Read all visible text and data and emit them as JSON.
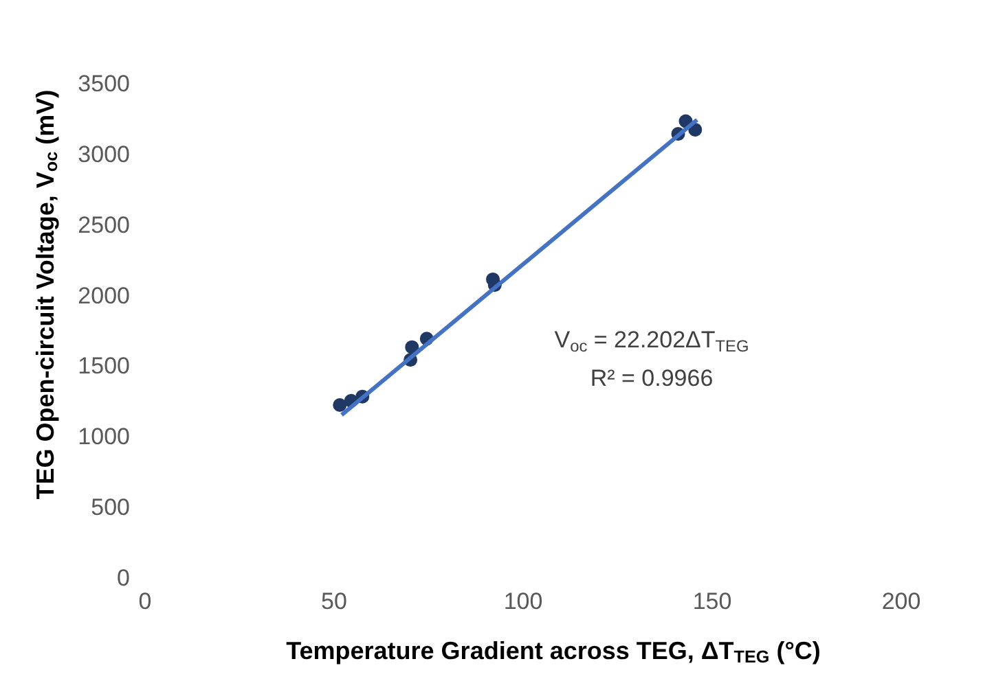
{
  "chart_data": {
    "type": "scatter",
    "xlabel": "Temperature Gradient across TEG, ΔT$_{TEG}$ (°C)",
    "ylabel": "TEG Open-circuit Voltage, V$_{oc}$ (mV)",
    "xlim": [
      0,
      200
    ],
    "xticks": [
      0,
      50,
      100,
      150,
      200
    ],
    "ylim": [
      0,
      3500
    ],
    "yticks": [
      0,
      500,
      1000,
      1500,
      2000,
      2500,
      3000,
      3500
    ],
    "grid": false,
    "series": [
      {
        "color": "#203864",
        "marker": "circle",
        "x": [
          51.5,
          54.5,
          57.5,
          70.6,
          70.2,
          74.5,
          92,
          92.5,
          141,
          143,
          145.5
        ],
        "values": [
          1220,
          1250,
          1280,
          1630,
          1540,
          1690,
          2110,
          2070,
          3140,
          3230,
          3170
        ]
      },
      {
        "type": "line",
        "color": "#4472c4",
        "x": [
          52,
          146
        ],
        "values": [
          1150,
          3240
        ]
      }
    ],
    "annotations": [
      "V$_{oc}$ = 22.202ΔT$_{TEG}$",
      "R² = 0.9966"
    ]
  }
}
